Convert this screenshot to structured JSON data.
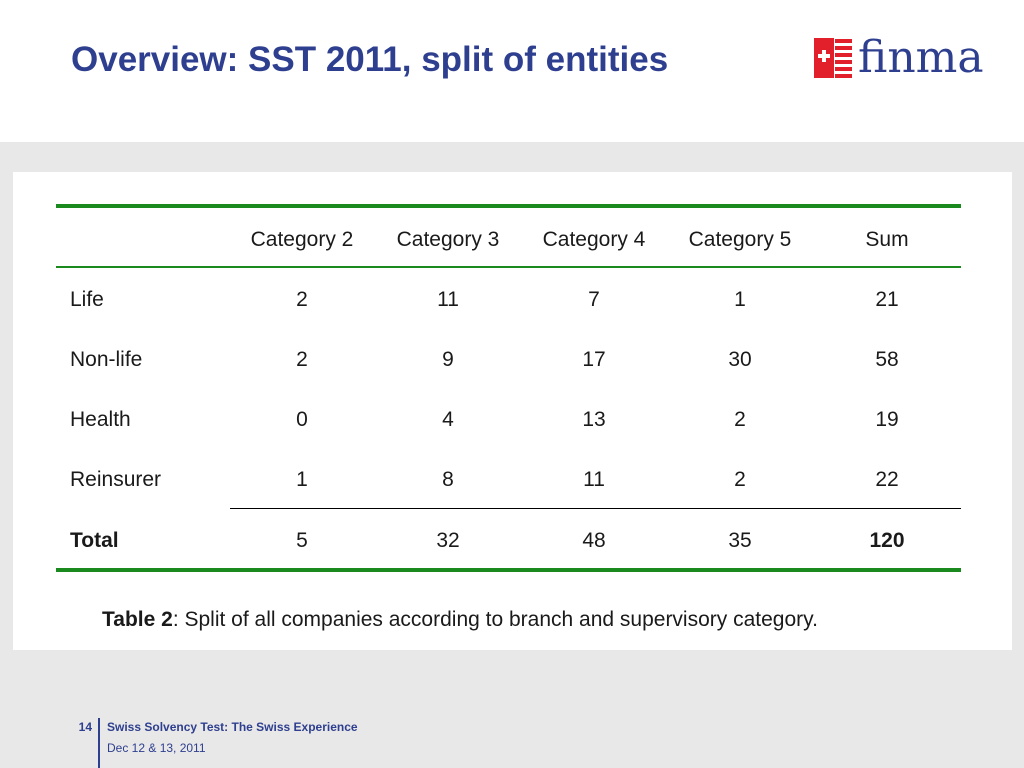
{
  "title": "Overview: SST 2011, split of entities",
  "logo": {
    "text": "finma",
    "icon": "swiss-cross-icon",
    "colors": {
      "red": "#e2202c",
      "blue": "#2e3f8f"
    }
  },
  "table": {
    "headers": [
      "Category 2",
      "Category 3",
      "Category 4",
      "Category 5",
      "Sum"
    ],
    "rows": [
      {
        "label": "Life",
        "values": [
          "2",
          "11",
          "7",
          "1",
          "21"
        ]
      },
      {
        "label": "Non-life",
        "values": [
          "2",
          "9",
          "17",
          "30",
          "58"
        ]
      },
      {
        "label": "Health",
        "values": [
          "0",
          "4",
          "13",
          "2",
          "19"
        ]
      },
      {
        "label": "Reinsurer",
        "values": [
          "1",
          "8",
          "11",
          "2",
          "22"
        ]
      }
    ],
    "total": {
      "label": "Total",
      "values": [
        "5",
        "32",
        "48",
        "35",
        "120"
      ]
    }
  },
  "caption": {
    "bold": "Table 2",
    "text": ": Split of all companies according to branch and supervisory category."
  },
  "footer": {
    "page_number": "14",
    "title": "Swiss Solvency Test: The Swiss Experience",
    "date": "Dec 12 & 13, 2011"
  },
  "colors": {
    "title": "#2e3f8f",
    "rule_green": "#1a8a1f",
    "background_gray": "#e8e8e8"
  }
}
